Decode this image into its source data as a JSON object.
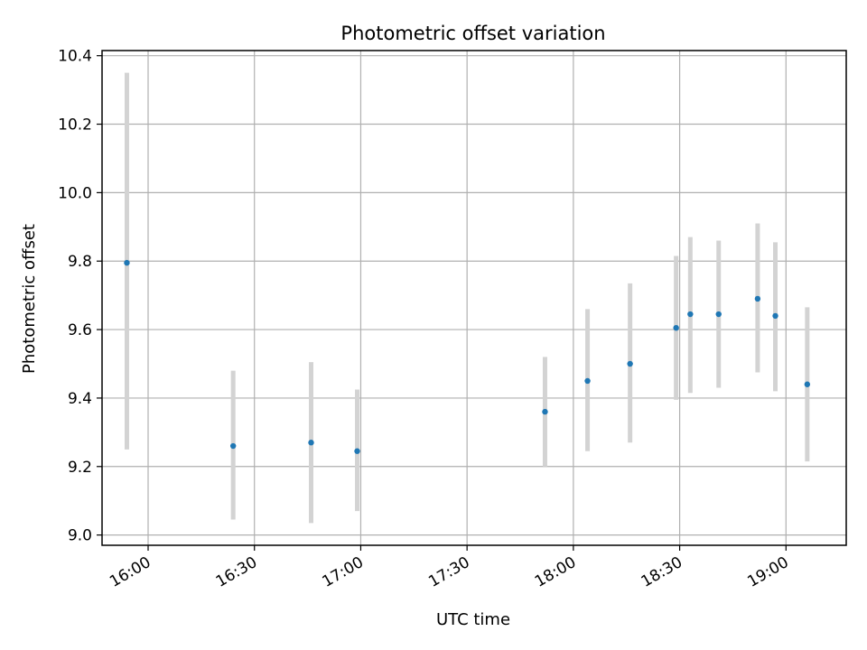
{
  "chart_data": {
    "type": "scatter",
    "title": "Photometric offset variation",
    "xlabel": "UTC time",
    "ylabel": "Photometric offset",
    "x_is_time": true,
    "xlim": [
      "15:47",
      "19:17"
    ],
    "ylim": [
      8.97,
      10.415
    ],
    "x_ticks": [
      "16:00",
      "16:30",
      "17:00",
      "17:30",
      "18:00",
      "18:30",
      "19:00"
    ],
    "y_ticks": [
      "9.0",
      "9.2",
      "9.4",
      "9.6",
      "9.8",
      "10.0",
      "10.2",
      "10.4"
    ],
    "grid": true,
    "marker_color": "#1f77b4",
    "errorbar_color": "#d3d3d3",
    "points": [
      {
        "x": "15:54",
        "y": 9.795,
        "err_low": 9.25,
        "err_high": 10.35
      },
      {
        "x": "16:24",
        "y": 9.26,
        "err_low": 9.045,
        "err_high": 9.48
      },
      {
        "x": "16:46",
        "y": 9.27,
        "err_low": 9.035,
        "err_high": 9.505
      },
      {
        "x": "16:59",
        "y": 9.245,
        "err_low": 9.07,
        "err_high": 9.425
      },
      {
        "x": "17:52",
        "y": 9.36,
        "err_low": 9.2,
        "err_high": 9.52
      },
      {
        "x": "18:04",
        "y": 9.45,
        "err_low": 9.245,
        "err_high": 9.66
      },
      {
        "x": "18:16",
        "y": 9.5,
        "err_low": 9.27,
        "err_high": 9.735
      },
      {
        "x": "18:29",
        "y": 9.605,
        "err_low": 9.395,
        "err_high": 9.815
      },
      {
        "x": "18:33",
        "y": 9.645,
        "err_low": 9.415,
        "err_high": 9.87
      },
      {
        "x": "18:41",
        "y": 9.645,
        "err_low": 9.43,
        "err_high": 9.86
      },
      {
        "x": "18:52",
        "y": 9.69,
        "err_low": 9.475,
        "err_high": 9.91
      },
      {
        "x": "18:57",
        "y": 9.64,
        "err_low": 9.42,
        "err_high": 9.855
      },
      {
        "x": "19:06",
        "y": 9.44,
        "err_low": 9.215,
        "err_high": 9.665
      }
    ]
  }
}
